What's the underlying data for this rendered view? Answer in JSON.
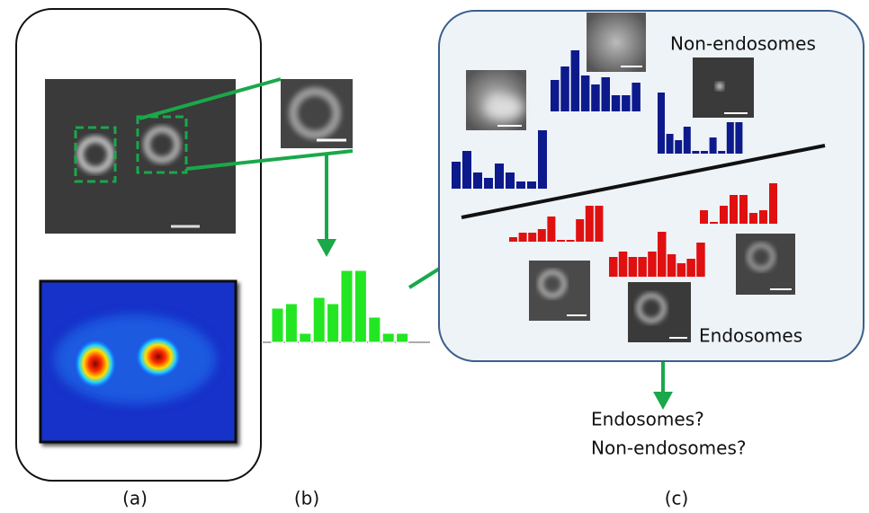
{
  "panel_labels": [
    "(a)",
    "(b)",
    "(c)"
  ],
  "class_labels": {
    "non_endosomes": "Non-endosomes",
    "endosomes": "Endosomes"
  },
  "question": [
    "Endosomes?",
    "Non-endosomes?"
  ],
  "histograms": [
    {
      "color": "#22e622",
      "values": [
        38,
        43,
        10,
        50,
        43,
        80,
        80,
        28,
        10,
        10
      ]
    },
    {
      "color": "#0d1a8c",
      "values": [
        30,
        42,
        18,
        12,
        28,
        18,
        8,
        8,
        65
      ]
    },
    {
      "color": "#0d1a8c",
      "values": [
        35,
        50,
        68,
        40,
        30,
        38,
        18,
        18,
        32
      ]
    },
    {
      "color": "#0d1a8c",
      "values": [
        68,
        22,
        15,
        30,
        3,
        3,
        18,
        3,
        35,
        35
      ]
    },
    {
      "color": "#e01010",
      "values": [
        5,
        10,
        10,
        14,
        28,
        2,
        2,
        25,
        40,
        40
      ]
    },
    {
      "color": "#e01010",
      "values": [
        22,
        28,
        22,
        22,
        28,
        50,
        25,
        15,
        20,
        38
      ]
    },
    {
      "color": "#e01010",
      "values": [
        15,
        2,
        20,
        32,
        32,
        12,
        15,
        45
      ]
    }
  ]
}
